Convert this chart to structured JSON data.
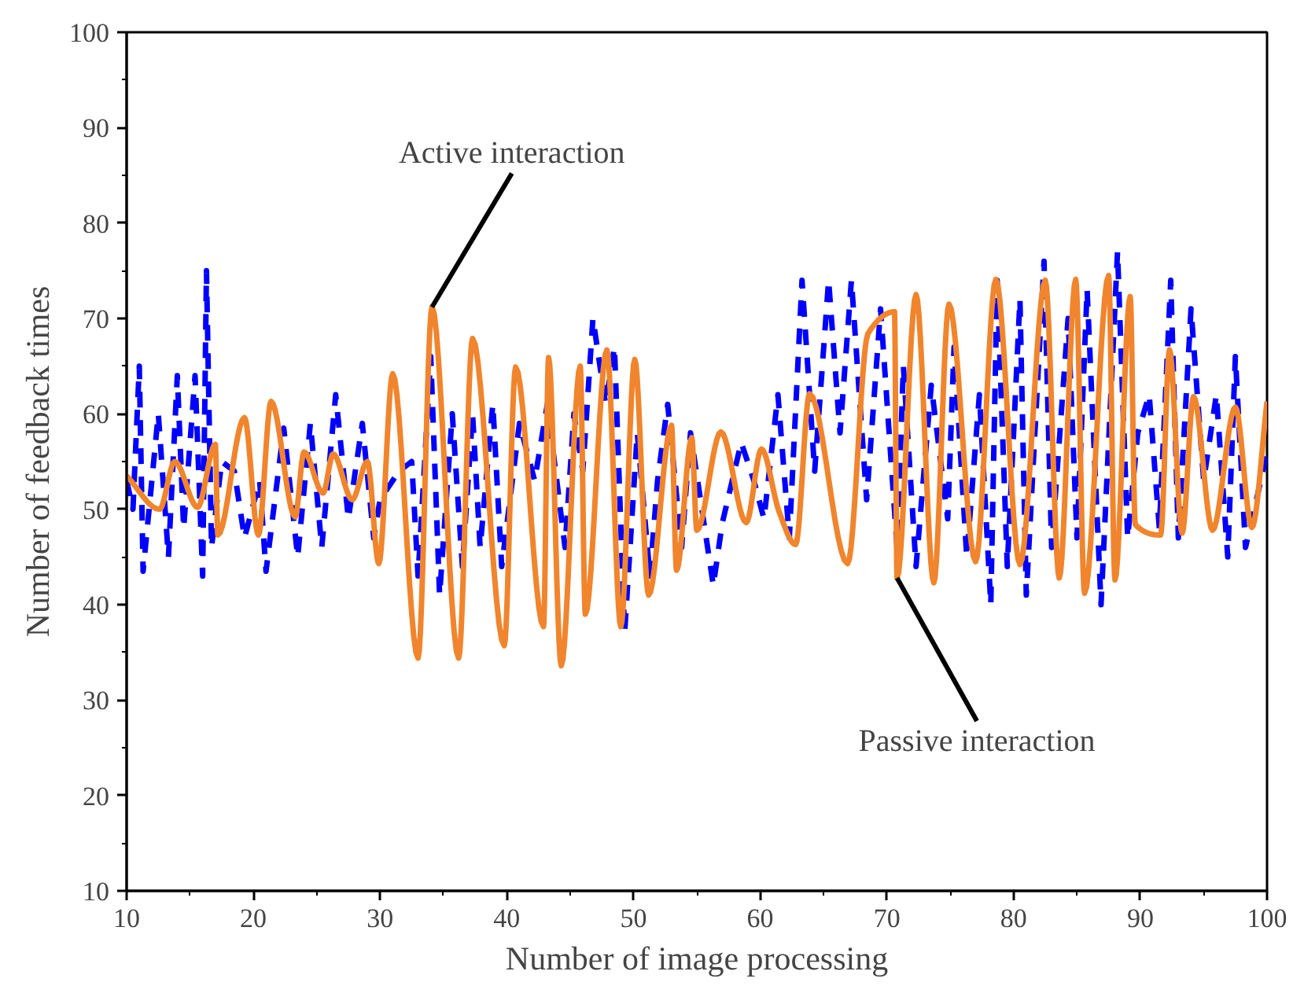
{
  "chart_data": {
    "type": "line",
    "xlabel": "Number of image processing",
    "ylabel": "Number of feedback times",
    "xlim": [
      10,
      100
    ],
    "ylim": [
      10,
      100
    ],
    "xticks": [
      10,
      20,
      30,
      40,
      50,
      60,
      70,
      80,
      90,
      100
    ],
    "yticks": [
      10,
      20,
      30,
      40,
      50,
      60,
      70,
      80,
      90,
      100
    ],
    "grid": false,
    "annotations": [
      {
        "text": "Active interaction",
        "x": 34.1,
        "y": 71.2
      },
      {
        "text": "Passive interaction",
        "x": 70.8,
        "y": 42.8
      }
    ],
    "series": [
      {
        "color": "#0000ff",
        "line_style": "dashed",
        "x": [
          10,
          10.5,
          11,
          11.3,
          12.5,
          13.3,
          14,
          14.5,
          15.4,
          16,
          16.3,
          16.7,
          17.5,
          18.5,
          19.3,
          20.5,
          21,
          22.4,
          23.5,
          24.5,
          25.4,
          26.5,
          27.5,
          28.6,
          29.5,
          30,
          31.5,
          32.5,
          33,
          34,
          34.7,
          35.7,
          36.5,
          37.3,
          37.9,
          38.9,
          39.6,
          41,
          42.2,
          43.2,
          44.6,
          45.3,
          46,
          46.8,
          47.8,
          48.5,
          49.3,
          50.3,
          51.3,
          51.9,
          52.7,
          53.8,
          54.5,
          56.3,
          57,
          58.5,
          59.5,
          60.3,
          61.4,
          62.3,
          63.3,
          64.3,
          65.4,
          66.3,
          67.2,
          68.4,
          69.5,
          70.8,
          71.3,
          72.3,
          73.5,
          74.8,
          75.3,
          76.3,
          77.3,
          78.2,
          78.7,
          79.5,
          80.5,
          81,
          82.4,
          83,
          84.3,
          85,
          85.8,
          86.9,
          88.2,
          89,
          89.8,
          90.7,
          91.5,
          92.4,
          93,
          94,
          95,
          96,
          96.9,
          97.5,
          98.3,
          99,
          100
        ],
        "values": [
          53,
          50,
          65,
          43.5,
          60,
          45,
          64,
          48,
          64,
          43,
          75,
          46,
          55,
          54,
          47,
          53,
          43.5,
          58.5,
          45,
          59,
          46,
          62,
          49,
          59,
          47,
          51,
          54,
          55,
          43,
          66,
          41,
          60,
          44,
          60,
          46,
          61,
          44,
          59,
          53,
          61,
          46,
          60,
          54,
          70,
          61,
          67,
          37,
          58,
          43,
          53,
          61,
          46,
          58,
          42,
          48.5,
          57,
          53,
          49,
          62,
          47,
          74,
          54,
          74,
          58,
          74,
          51,
          71,
          46,
          65,
          44,
          63,
          49,
          67,
          45,
          62,
          40,
          74,
          44,
          72,
          41,
          76,
          46,
          70,
          47,
          73,
          40,
          77,
          47,
          58,
          62,
          48,
          74,
          47,
          71,
          53,
          62,
          45,
          66,
          46,
          50,
          56
        ]
      },
      {
        "color": "#f0852d",
        "line_style": "solid",
        "x": [
          10,
          12.6,
          13.8,
          15.6,
          17,
          17.2,
          19.3,
          20.4,
          21.4,
          23.3,
          24,
          25.5,
          26.3,
          27.8,
          29,
          29.9,
          31,
          33,
          34.1,
          36.2,
          37.3,
          39.8,
          40.7,
          42.9,
          43.3,
          44.3,
          45.8,
          46.2,
          47.9,
          49,
          50.1,
          51.2,
          53,
          53.4,
          54.6,
          55,
          56.9,
          58.9,
          60.1,
          61.5,
          62.8,
          63.9,
          66.9,
          68.5,
          70.6,
          70.8,
          72.3,
          73.7,
          74.9,
          77,
          78.6,
          80.5,
          82.5,
          83.6,
          84.9,
          85.6,
          87.5,
          88,
          89.2,
          89.6,
          91.6,
          92.3,
          93.3,
          94.2,
          95.7,
          97.5,
          98.8,
          100
        ],
        "values": [
          53.5,
          50,
          55,
          50.2,
          56.8,
          47.3,
          59.6,
          47.3,
          61.3,
          49.2,
          56,
          51.7,
          55.8,
          51,
          55,
          44.3,
          64.2,
          34.4,
          71.2,
          34.4,
          67.9,
          35.7,
          64.9,
          37.7,
          65.9,
          33.6,
          65,
          39,
          66.7,
          37.7,
          65.7,
          41,
          58.8,
          43.6,
          57.5,
          47.8,
          58.1,
          48.6,
          56.3,
          49.7,
          46.3,
          62.1,
          44.3,
          68.4,
          70.7,
          42.8,
          72.5,
          42.3,
          71.5,
          44.5,
          74.1,
          44.2,
          74,
          42.8,
          74.1,
          41.2,
          74.5,
          42.6,
          72.3,
          48.4,
          47.3,
          66.7,
          47.5,
          61.8,
          47.8,
          60.7,
          48.1,
          61.3
        ]
      }
    ]
  }
}
